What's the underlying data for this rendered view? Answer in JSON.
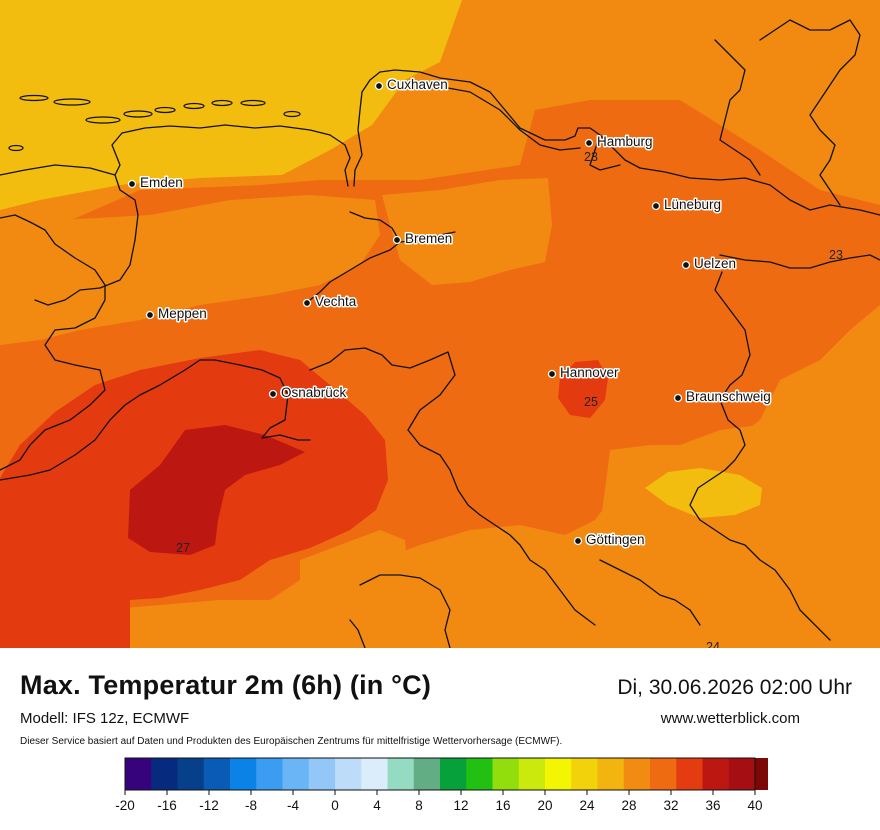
{
  "map": {
    "cities": [
      {
        "name": "Cuxhaven"
      },
      {
        "name": "Hamburg"
      },
      {
        "name": "Emden"
      },
      {
        "name": "Lüneburg"
      },
      {
        "name": "Bremen"
      },
      {
        "name": "Uelzen"
      },
      {
        "name": "Vechta"
      },
      {
        "name": "Meppen"
      },
      {
        "name": "Hannover"
      },
      {
        "name": "Osnabrück"
      },
      {
        "name": "Braunschweig"
      },
      {
        "name": "Göttingen"
      }
    ],
    "isoline_labels": [
      "23",
      "23",
      "25",
      "27",
      "24"
    ],
    "colors": {
      "t20_22": "#f2bd0e",
      "t22_24": "#f28a12",
      "t24_26": "#ee6b12",
      "t26_28": "#e43a10",
      "t28_30": "#bd1712",
      "coast": "#111111"
    }
  },
  "header": {
    "title": "Max. Temperatur 2m (6h) (in °C)",
    "model": "Modell: IFS 12z, ECMWF",
    "datetime": "Di, 30.06.2026 02:00 Uhr",
    "website": "www.wetterblick.com",
    "disclaimer": "Dieser Service basiert auf Daten und Produkten des Europäischen Zentrums für mittelfristige Wettervorhersage (ECMWF)."
  },
  "colorbar": {
    "min": -20,
    "max": 40,
    "step": 2.5,
    "ticks": [
      "-20",
      "-16",
      "-12",
      "-8",
      "-4",
      "0",
      "4",
      "8",
      "12",
      "16",
      "20",
      "24",
      "28",
      "32",
      "36",
      "40"
    ],
    "colors": [
      "#36037d",
      "#062b7e",
      "#063f8a",
      "#0a5bb5",
      "#0b82e6",
      "#3b9cf2",
      "#6ab5f5",
      "#93c7f7",
      "#bcdcf9",
      "#dbecfb",
      "#94dbc1",
      "#63ad84",
      "#06a13b",
      "#22c012",
      "#92dd0c",
      "#cce90d",
      "#f4f502",
      "#f2d20a",
      "#f2b40e",
      "#f28b12",
      "#ee6b12",
      "#e43c10",
      "#bd1712",
      "#a50f14",
      "#7d0808",
      "#93363a",
      "#c77679",
      "#f6b2b0",
      "#fde1e3"
    ]
  }
}
